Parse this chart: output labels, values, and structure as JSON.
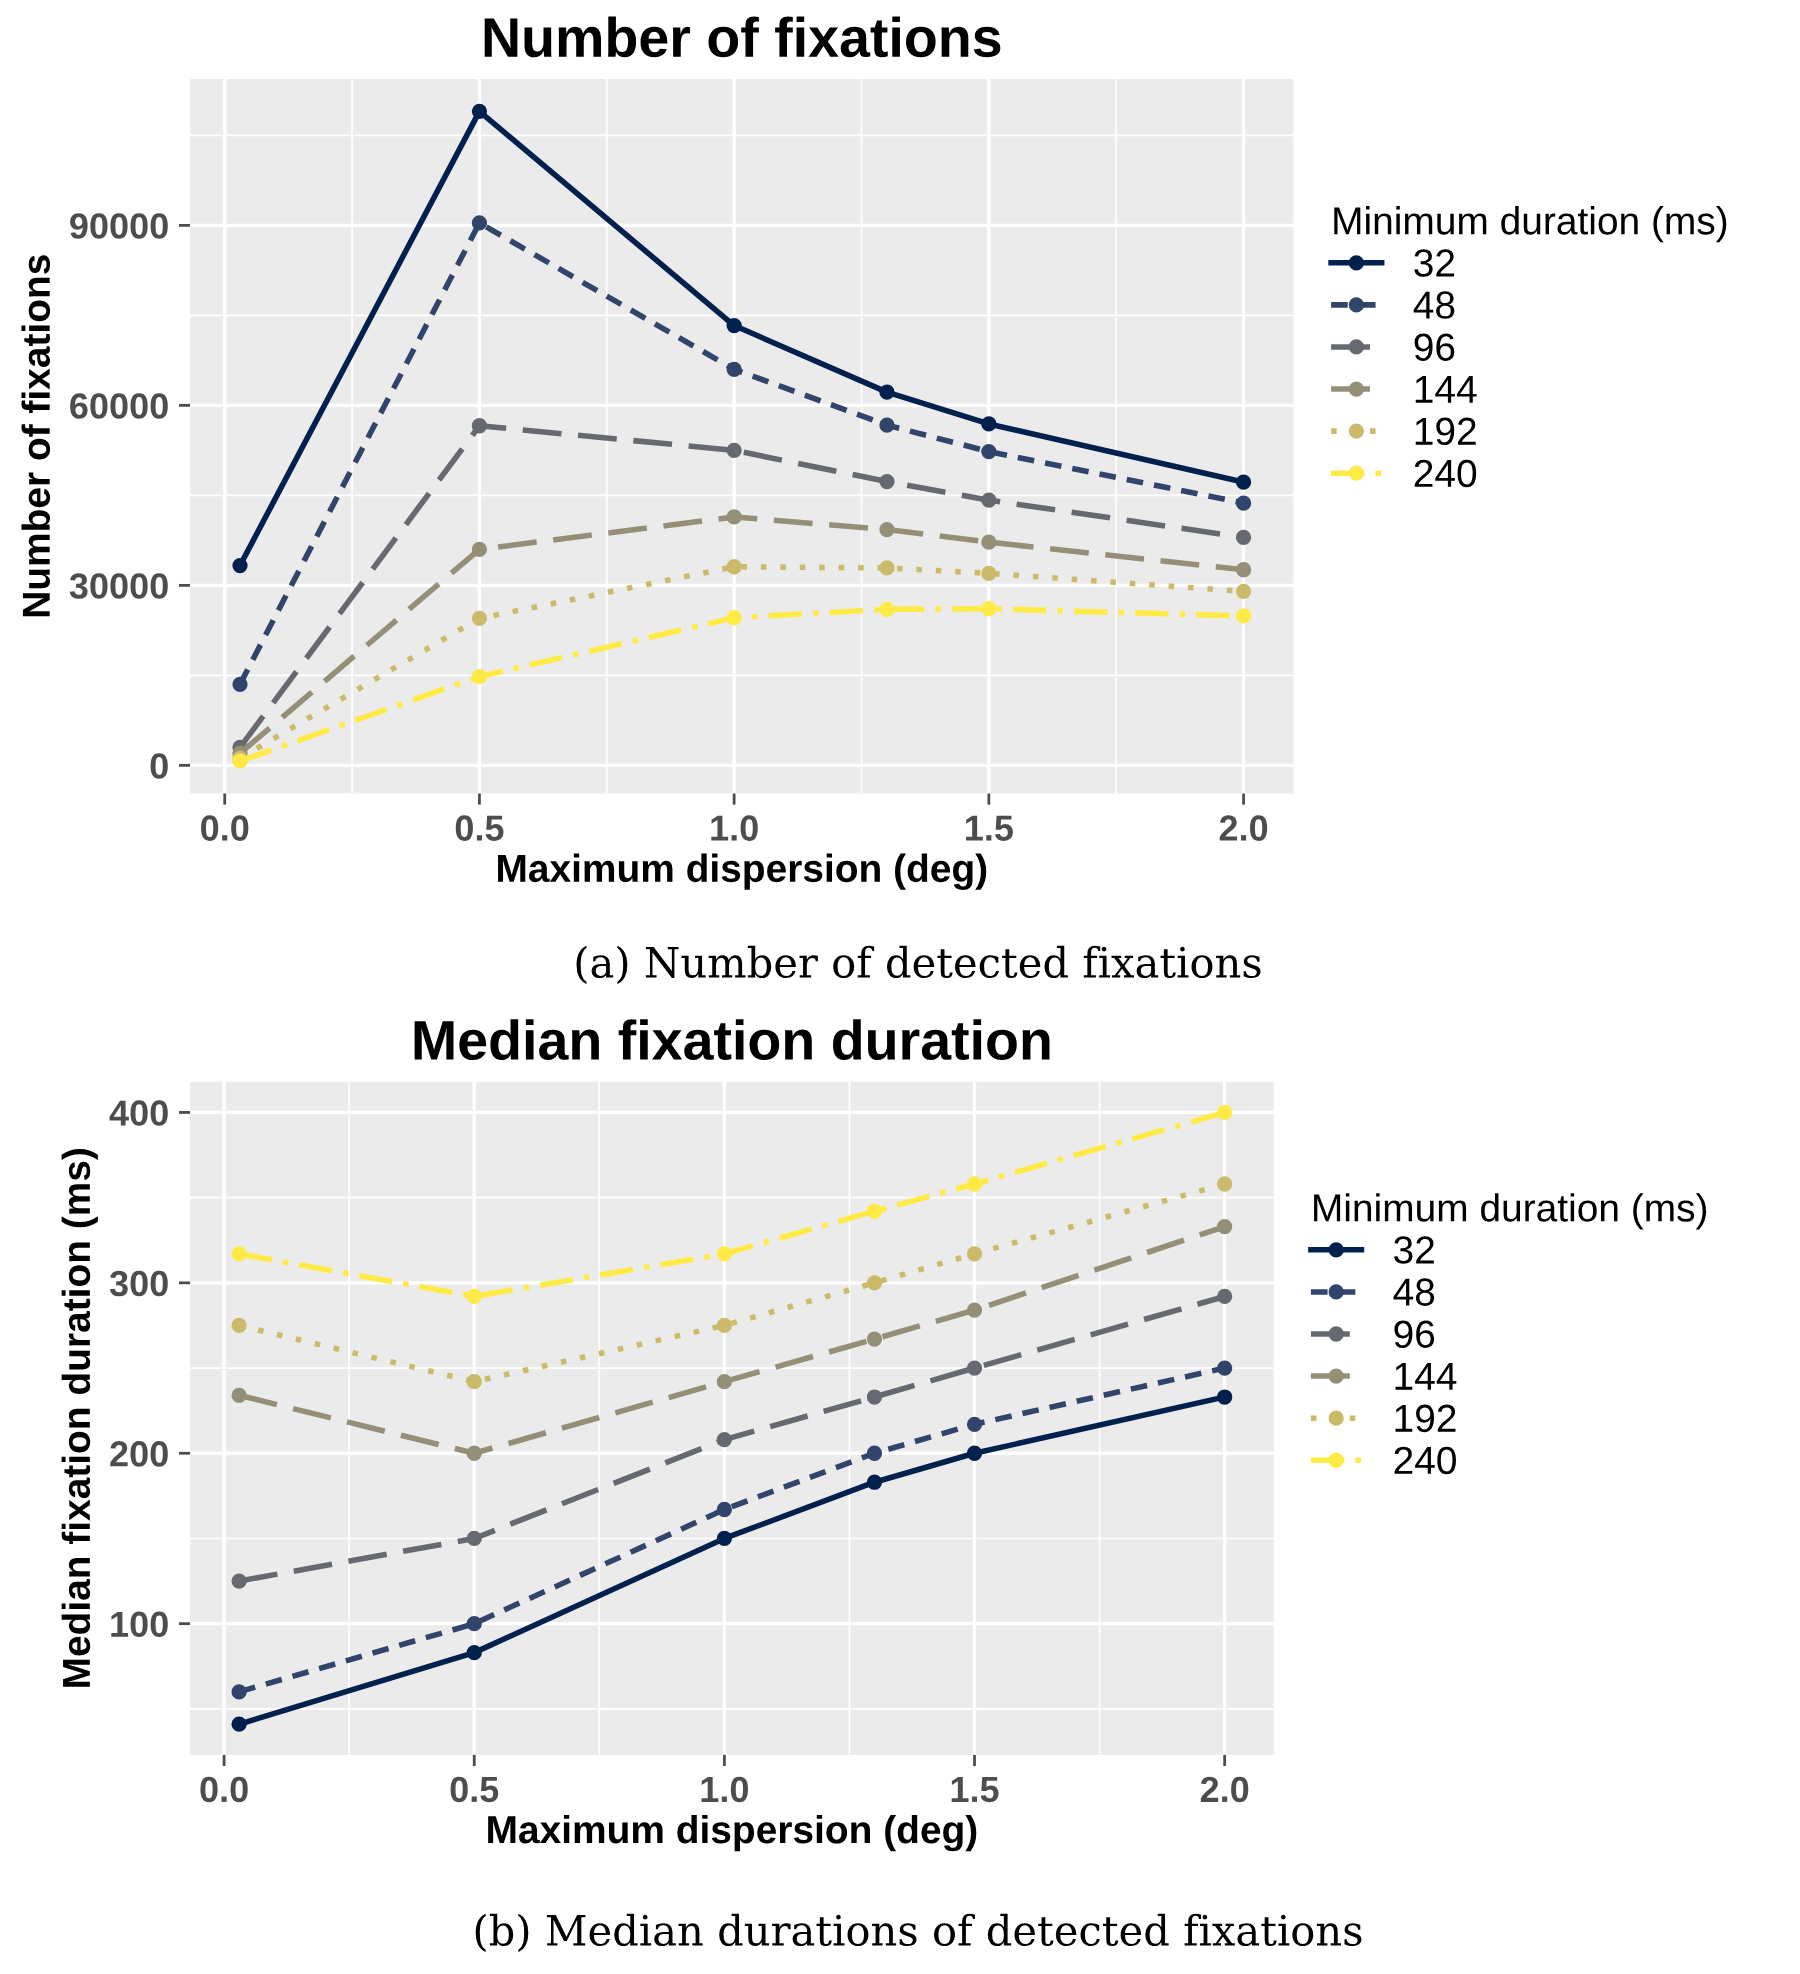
{
  "chart_data": [
    {
      "type": "line",
      "title": "Number of fixations",
      "xlabel": "Maximum dispersion (deg)",
      "ylabel": "Number of fixations",
      "legend_title": "Minimum duration (ms)",
      "x": [
        0.03,
        0.5,
        1.0,
        1.3,
        1.5,
        2.0
      ],
      "series": [
        {
          "name": "32",
          "color": "#00204d",
          "line_style": "solid",
          "values": [
            33300,
            109000,
            73300,
            62200,
            56900,
            47200
          ]
        },
        {
          "name": "48",
          "color": "#31446b",
          "line_style": "dashed",
          "values": [
            13500,
            90400,
            66000,
            56700,
            52300,
            43700
          ]
        },
        {
          "name": "96",
          "color": "#666970",
          "line_style": "longdash",
          "values": [
            3000,
            56600,
            52500,
            47300,
            44200,
            38000
          ]
        },
        {
          "name": "144",
          "color": "#958f78",
          "line_style": "longdash",
          "values": [
            2000,
            36000,
            41400,
            39300,
            37200,
            32600
          ]
        },
        {
          "name": "192",
          "color": "#cbba69",
          "line_style": "dotted",
          "values": [
            1200,
            24500,
            33100,
            32900,
            32000,
            29000
          ]
        },
        {
          "name": "240",
          "color": "#ffea46",
          "line_style": "dashdot",
          "values": [
            700,
            14800,
            24600,
            26000,
            26100,
            24900
          ]
        }
      ],
      "xlim": [
        -0.068,
        2.098
      ],
      "ylim": [
        -4700,
        114400
      ],
      "xticks": [
        {
          "value": 0.0,
          "label": "0.0"
        },
        {
          "value": 0.5,
          "label": "0.5"
        },
        {
          "value": 1.0,
          "label": "1.0"
        },
        {
          "value": 1.5,
          "label": "1.5"
        },
        {
          "value": 2.0,
          "label": "2.0"
        }
      ],
      "yticks": [
        0,
        30000,
        60000,
        90000
      ],
      "grid": true,
      "legend": "right",
      "marker": "circle",
      "annotations": [
        "(a) Number of detected fixations"
      ]
    },
    {
      "type": "line",
      "title": "Median fixation duration",
      "xlabel": "Maximum dispersion (deg)",
      "ylabel": "Median fixation duration (ms)",
      "legend_title": "Minimum duration (ms)",
      "x": [
        0.03,
        0.5,
        1.0,
        1.3,
        1.5,
        2.0
      ],
      "series": [
        {
          "name": "32",
          "color": "#00204d",
          "line_style": "solid",
          "values": [
            41,
            83,
            150,
            183,
            200,
            233
          ]
        },
        {
          "name": "48",
          "color": "#31446b",
          "line_style": "dashed",
          "values": [
            60,
            100,
            167,
            200,
            217,
            250
          ]
        },
        {
          "name": "96",
          "color": "#666970",
          "line_style": "longdash",
          "values": [
            125,
            150,
            208,
            233,
            250,
            292
          ]
        },
        {
          "name": "144",
          "color": "#958f78",
          "line_style": "longdash",
          "values": [
            234,
            200,
            242,
            267,
            284,
            333
          ]
        },
        {
          "name": "192",
          "color": "#cbba69",
          "line_style": "dotted",
          "values": [
            275,
            242,
            275,
            300,
            317,
            358
          ]
        },
        {
          "name": "240",
          "color": "#ffea46",
          "line_style": "dashdot",
          "values": [
            317,
            292,
            317,
            342,
            358,
            400
          ]
        }
      ],
      "xlim": [
        -0.068,
        2.098
      ],
      "ylim": [
        23,
        418
      ],
      "xticks": [
        {
          "value": 0.0,
          "label": "0.0"
        },
        {
          "value": 0.5,
          "label": "0.5"
        },
        {
          "value": 1.0,
          "label": "1.0"
        },
        {
          "value": 1.5,
          "label": "1.5"
        },
        {
          "value": 2.0,
          "label": "2.0"
        }
      ],
      "yticks": [
        100,
        200,
        300,
        400
      ],
      "grid": true,
      "legend": "right",
      "marker": "circle",
      "annotations": [
        "(b) Median durations of detected fixations"
      ]
    }
  ]
}
